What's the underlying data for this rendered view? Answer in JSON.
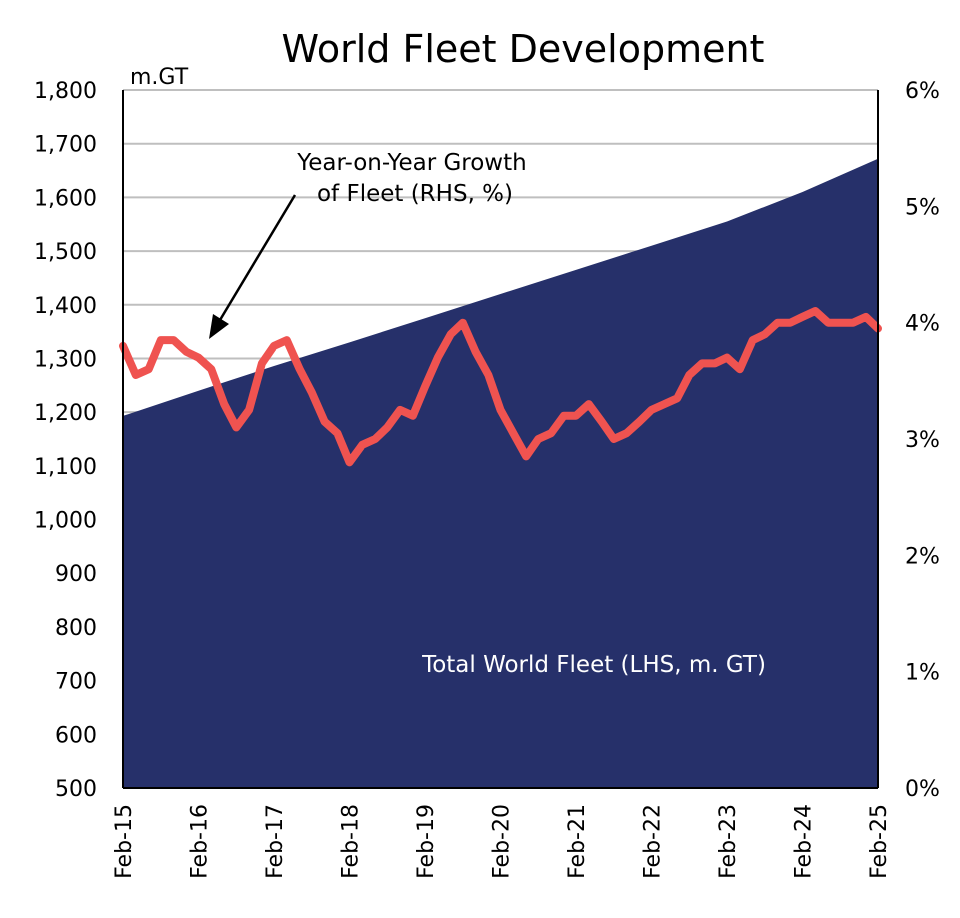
{
  "chart_data": {
    "type": "area",
    "title": "World Fleet Development",
    "ylabel_left_unit": "m.GT",
    "left_axis": {
      "range": [
        500,
        1800
      ],
      "ticks": [
        "1,800",
        "1,700",
        "1,600",
        "1,500",
        "1,400",
        "1,300",
        "1,200",
        "1,100",
        "1,000",
        "900",
        "800",
        "700",
        "600",
        "500"
      ]
    },
    "right_axis": {
      "range": [
        0,
        6
      ],
      "ticks": [
        "6%",
        "5%",
        "4%",
        "3%",
        "2%",
        "1%",
        "0%"
      ]
    },
    "x_ticks": [
      "Feb-15",
      "Feb-16",
      "Feb-17",
      "Feb-18",
      "Feb-19",
      "Feb-20",
      "Feb-21",
      "Feb-22",
      "Feb-23",
      "Feb-24",
      "Feb-25"
    ],
    "grid": true,
    "annotations": {
      "growth_line1": "Year-on-Year Growth",
      "growth_line2": "of Fleet (RHS, %)",
      "fleet_label": "Total World Fleet (LHS, m. GT)"
    },
    "colors": {
      "fleet": "#26306a",
      "growth": "#ef5350",
      "grid": "#bfbfbf"
    },
    "series": [
      {
        "name": "Total World Fleet (LHS, m. GT)",
        "axis": "left",
        "type": "area",
        "x": [
          2015.08,
          2016.08,
          2017.08,
          2018.08,
          2019.08,
          2020.08,
          2021.08,
          2022.08,
          2023.08,
          2024.08,
          2025.08
        ],
        "values": [
          1193,
          1240,
          1286,
          1330,
          1375,
          1420,
          1465,
          1510,
          1555,
          1610,
          1672
        ]
      },
      {
        "name": "Year-on-Year Growth of Fleet (RHS, %)",
        "axis": "right",
        "type": "line",
        "x": [
          2015.08,
          2015.25,
          2015.42,
          2015.58,
          2015.75,
          2015.92,
          2016.08,
          2016.25,
          2016.42,
          2016.58,
          2016.75,
          2016.92,
          2017.08,
          2017.25,
          2017.42,
          2017.58,
          2017.75,
          2017.92,
          2018.08,
          2018.25,
          2018.42,
          2018.58,
          2018.75,
          2018.92,
          2019.08,
          2019.25,
          2019.42,
          2019.58,
          2019.75,
          2019.92,
          2020.08,
          2020.25,
          2020.42,
          2020.58,
          2020.75,
          2020.92,
          2021.08,
          2021.25,
          2021.42,
          2021.58,
          2021.75,
          2021.92,
          2022.08,
          2022.25,
          2022.42,
          2022.58,
          2022.75,
          2022.92,
          2023.08,
          2023.25,
          2023.42,
          2023.58,
          2023.75,
          2023.92,
          2024.08,
          2024.25,
          2024.42,
          2024.58,
          2024.75,
          2024.92,
          2025.08
        ],
        "values": [
          3.8,
          3.55,
          3.6,
          3.85,
          3.85,
          3.75,
          3.7,
          3.6,
          3.3,
          3.1,
          3.25,
          3.65,
          3.8,
          3.85,
          3.6,
          3.4,
          3.15,
          3.05,
          2.8,
          2.95,
          3.0,
          3.1,
          3.25,
          3.2,
          3.45,
          3.7,
          3.9,
          4.0,
          3.75,
          3.55,
          3.25,
          3.05,
          2.85,
          3.0,
          3.05,
          3.2,
          3.2,
          3.3,
          3.15,
          3.0,
          3.05,
          3.15,
          3.25,
          3.3,
          3.35,
          3.55,
          3.65,
          3.65,
          3.7,
          3.6,
          3.85,
          3.9,
          4.0,
          4.0,
          4.05,
          4.1,
          4.0,
          4.0,
          4.0,
          4.05,
          3.95
        ]
      }
    ]
  }
}
